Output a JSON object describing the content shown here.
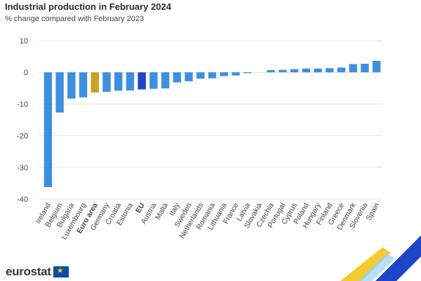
{
  "title": "Industrial production in February 2024",
  "subtitle": "% change compared with February 2023",
  "brand": {
    "name": "eurostat",
    "icon": "eu-flag-icon"
  },
  "colors": {
    "country": "#3d8fe0",
    "euro_area": "#c9a227",
    "eu": "#1f45c9",
    "grid": "#e3e3e3",
    "axis_text": "#444444"
  },
  "chart_data": {
    "type": "bar",
    "title": "Industrial production in February 2024",
    "subtitle": "% change compared with February 2023",
    "xlabel": "",
    "ylabel": "",
    "ylim": [
      -40,
      10
    ],
    "yticks": [
      10,
      0,
      -10,
      -20,
      -30,
      -40
    ],
    "grid": true,
    "categories": [
      "Ireland",
      "Belgium",
      "Bulgaria",
      "Luxembourg",
      "Euro area",
      "Germany",
      "Croatia",
      "Estonia",
      "EU",
      "Austria",
      "Malta",
      "Italy",
      "Sweden",
      "Netherlands",
      "Romania",
      "Lithuania",
      "France",
      "Latvia",
      "Slovakia",
      "Czechia",
      "Portugal",
      "Cyprus",
      "Poland",
      "Hungary",
      "Finland",
      "Greece",
      "Denmark",
      "Slovenia",
      "Spain"
    ],
    "values": [
      -36.2,
      -12.7,
      -8.3,
      -7.9,
      -6.4,
      -6.2,
      -5.8,
      -5.7,
      -5.4,
      -5.2,
      -5.1,
      -3.2,
      -2.8,
      -2.0,
      -1.9,
      -1.2,
      -1.0,
      -0.3,
      0.0,
      0.7,
      0.8,
      1.0,
      1.2,
      1.2,
      1.3,
      1.5,
      2.6,
      2.7,
      3.6
    ],
    "highlight": {
      "Euro area": "euro_area",
      "EU": "eu"
    },
    "bold_labels": [
      "Euro area",
      "EU"
    ]
  }
}
